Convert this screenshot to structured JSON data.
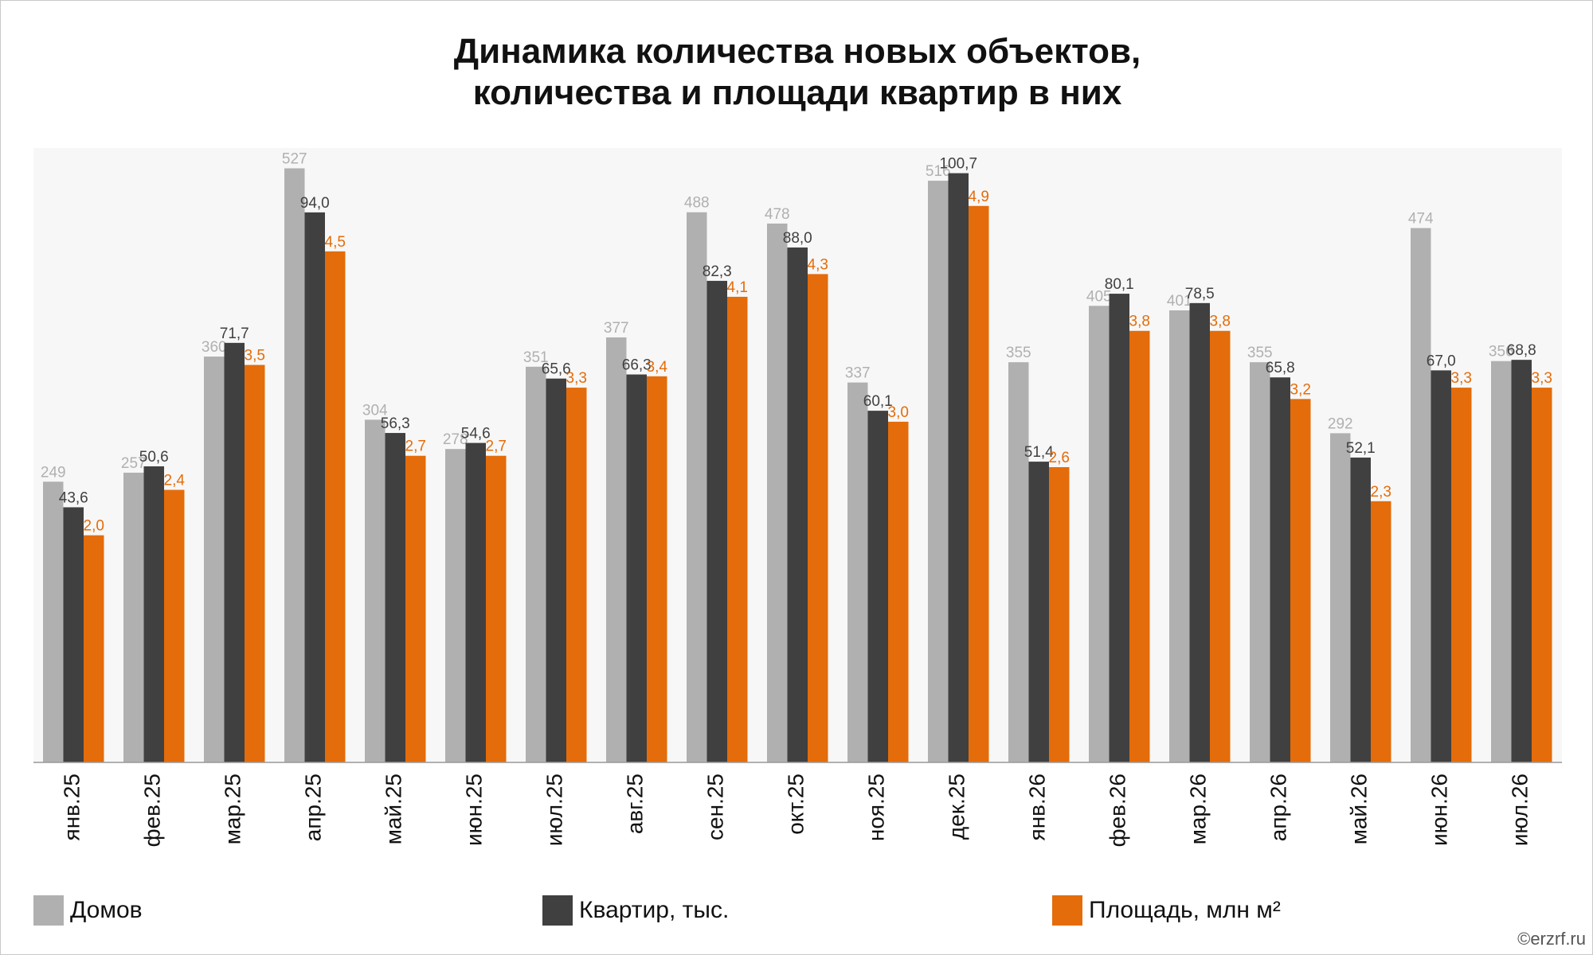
{
  "chart_data": {
    "type": "bar",
    "title": "Динамика количества новых объектов,\nколичества и площади квартир в них",
    "categories": [
      "янв.25",
      "фев.25",
      "мар.25",
      "апр.25",
      "май.25",
      "июн.25",
      "июл.25",
      "авг.25",
      "сен.25",
      "окт.25",
      "ноя.25",
      "дек.25",
      "янв.26",
      "фев.26",
      "мар.26",
      "апр.26",
      "май.26",
      "июн.26",
      "июл.26"
    ],
    "series": [
      {
        "name": "Домов",
        "color": "#b0b0b0",
        "ylim": [
          0,
          545
        ],
        "values": [
          249,
          257,
          360,
          527,
          304,
          278,
          351,
          377,
          488,
          478,
          337,
          516,
          355,
          405,
          401,
          355,
          292,
          474,
          356
        ]
      },
      {
        "name": "Квартир, тыс.",
        "color": "#404040",
        "ylim": [
          0,
          105
        ],
        "values": [
          43.6,
          50.6,
          71.7,
          94.0,
          56.3,
          54.6,
          65.6,
          66.3,
          82.3,
          88.0,
          60.1,
          100.7,
          51.4,
          80.1,
          78.5,
          65.8,
          52.1,
          67.0,
          68.8
        ],
        "value_labels": [
          "43,6",
          "50,6",
          "71,7",
          "94,0",
          "56,3",
          "54,6",
          "65,6",
          "66,3",
          "82,3",
          "88,0",
          "60,1",
          "100,7",
          "51,4",
          "80,1",
          "78,5",
          "65,8",
          "52,1",
          "67,0",
          "68,8"
        ]
      },
      {
        "name": "Площадь, млн м²",
        "color": "#e46c0a",
        "ylim": [
          0,
          5.41
        ],
        "values": [
          2.0,
          2.4,
          3.5,
          4.5,
          2.7,
          2.7,
          3.3,
          3.4,
          4.1,
          4.3,
          3.0,
          4.9,
          2.6,
          3.8,
          3.8,
          3.2,
          2.3,
          3.3,
          3.3
        ],
        "value_labels": [
          "2,0",
          "2,4",
          "3,5",
          "4,5",
          "2,7",
          "2,7",
          "3,3",
          "3,4",
          "4,1",
          "4,3",
          "3,0",
          "4,9",
          "2,6",
          "3,8",
          "3,8",
          "3,2",
          "2,3",
          "3,3",
          "3,3"
        ]
      }
    ],
    "watermark": "©erzrf.ru"
  }
}
